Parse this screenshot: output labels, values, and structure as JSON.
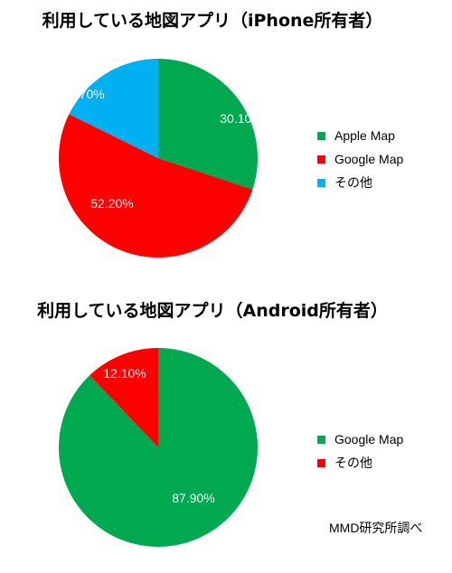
{
  "chart_data": [
    {
      "type": "pie",
      "title": "利用している地図アプリ（iPhone所有者）",
      "categories": [
        "Apple Map",
        "Google Map",
        "その他"
      ],
      "values": [
        30.1,
        52.2,
        17.7
      ],
      "labels": [
        "30.10%",
        "52.20%",
        "17.70%"
      ],
      "colors": [
        "#00a84f",
        "#ff0000",
        "#00b0f0"
      ],
      "legend": "right"
    },
    {
      "type": "pie",
      "title": "利用している地図アプリ（Android所有者）",
      "categories": [
        "Google Map",
        "その他"
      ],
      "values": [
        87.9,
        12.1
      ],
      "labels": [
        "87.90%",
        "12.10%"
      ],
      "colors": [
        "#00a84f",
        "#ff0000"
      ],
      "legend": "right"
    }
  ],
  "source": "MMD研究所調べ"
}
